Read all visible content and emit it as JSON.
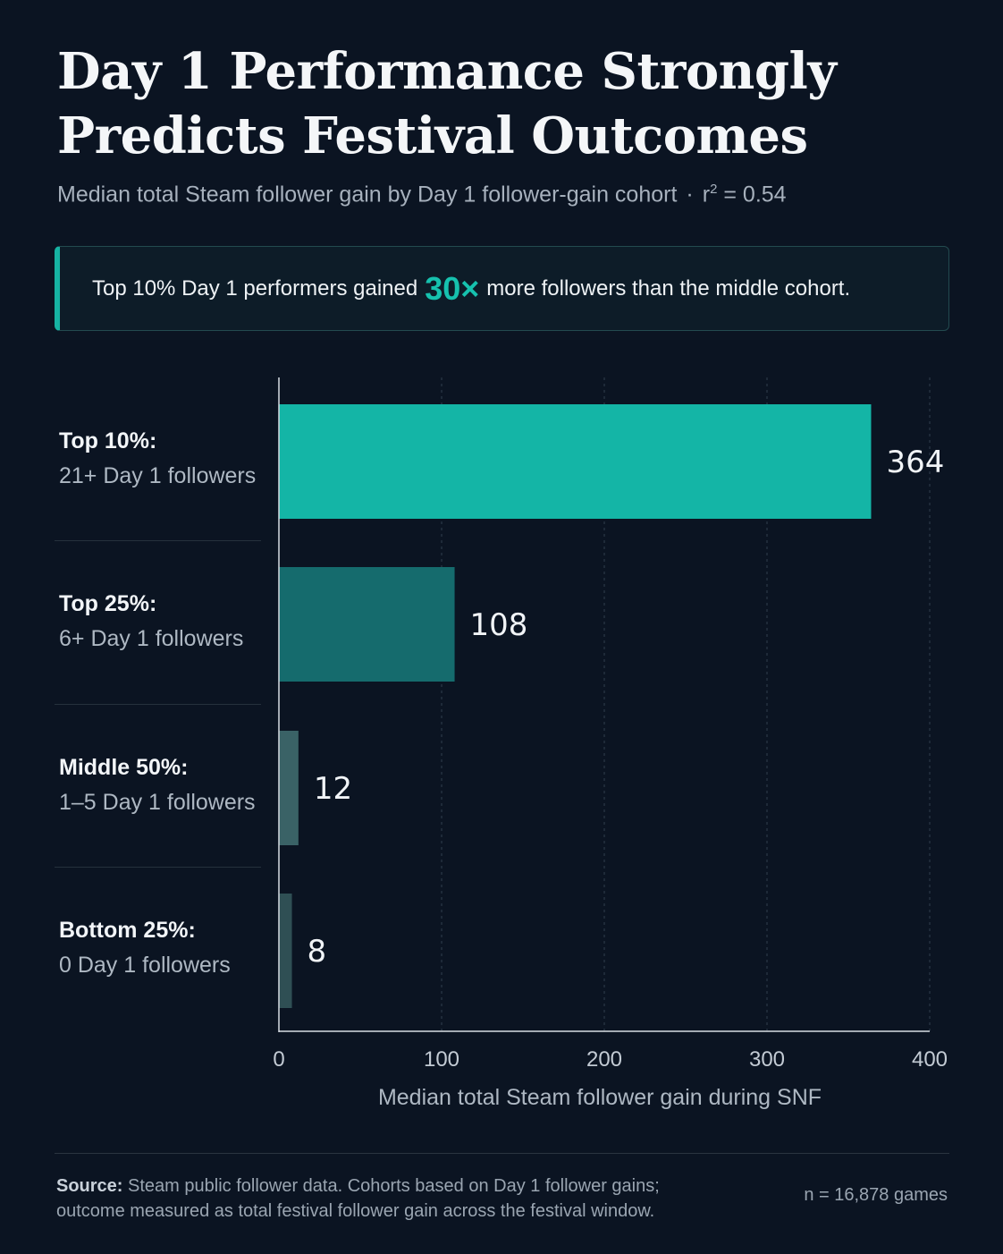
{
  "title_line1": "Day 1 Performance Strongly",
  "title_line2": "Predicts Festival Outcomes",
  "subtitle_text": "Median total Steam follower gain by Day 1 follower-gain cohort",
  "subtitle_sep": "·",
  "subtitle_r_prefix": "r",
  "subtitle_r_exp": "2",
  "subtitle_r_value": " = 0.54",
  "callout": {
    "before": "Top 10% Day 1 performers gained",
    "highlight": "30×",
    "after": "more followers than the middle cohort."
  },
  "colors": {
    "background": "#0b1422",
    "accent": "#16b3a3",
    "bars": [
      "#14b5a6",
      "#156b6d",
      "#3a6266",
      "#2f4f54"
    ]
  },
  "chart_data": {
    "type": "bar",
    "orientation": "horizontal",
    "categories": [
      "Top 10%:",
      "Top 25%:",
      "Middle 50%:",
      "Bottom 25%:"
    ],
    "category_sublabels": [
      "21+ Day 1 followers",
      "6+ Day 1 followers",
      "1–5 Day 1 followers",
      "0 Day 1 followers"
    ],
    "values": [
      364,
      108,
      12,
      8
    ],
    "value_labels": [
      "364",
      "108",
      "12",
      "8"
    ],
    "xlabel": "Median total Steam follower gain during SNF",
    "xlim": [
      0,
      400
    ],
    "xticks": [
      0,
      100,
      200,
      300,
      400
    ],
    "xtick_labels": [
      "0",
      "100",
      "200",
      "300",
      "400"
    ],
    "grid": "vertical dashed"
  },
  "footer": {
    "source_label": "Source:",
    "source_text": " Steam public follower data. Cohorts based on Day 1 follower gains; outcome measured as total festival follower gain across the festival window.",
    "n_text": "n = 16,878 games"
  }
}
